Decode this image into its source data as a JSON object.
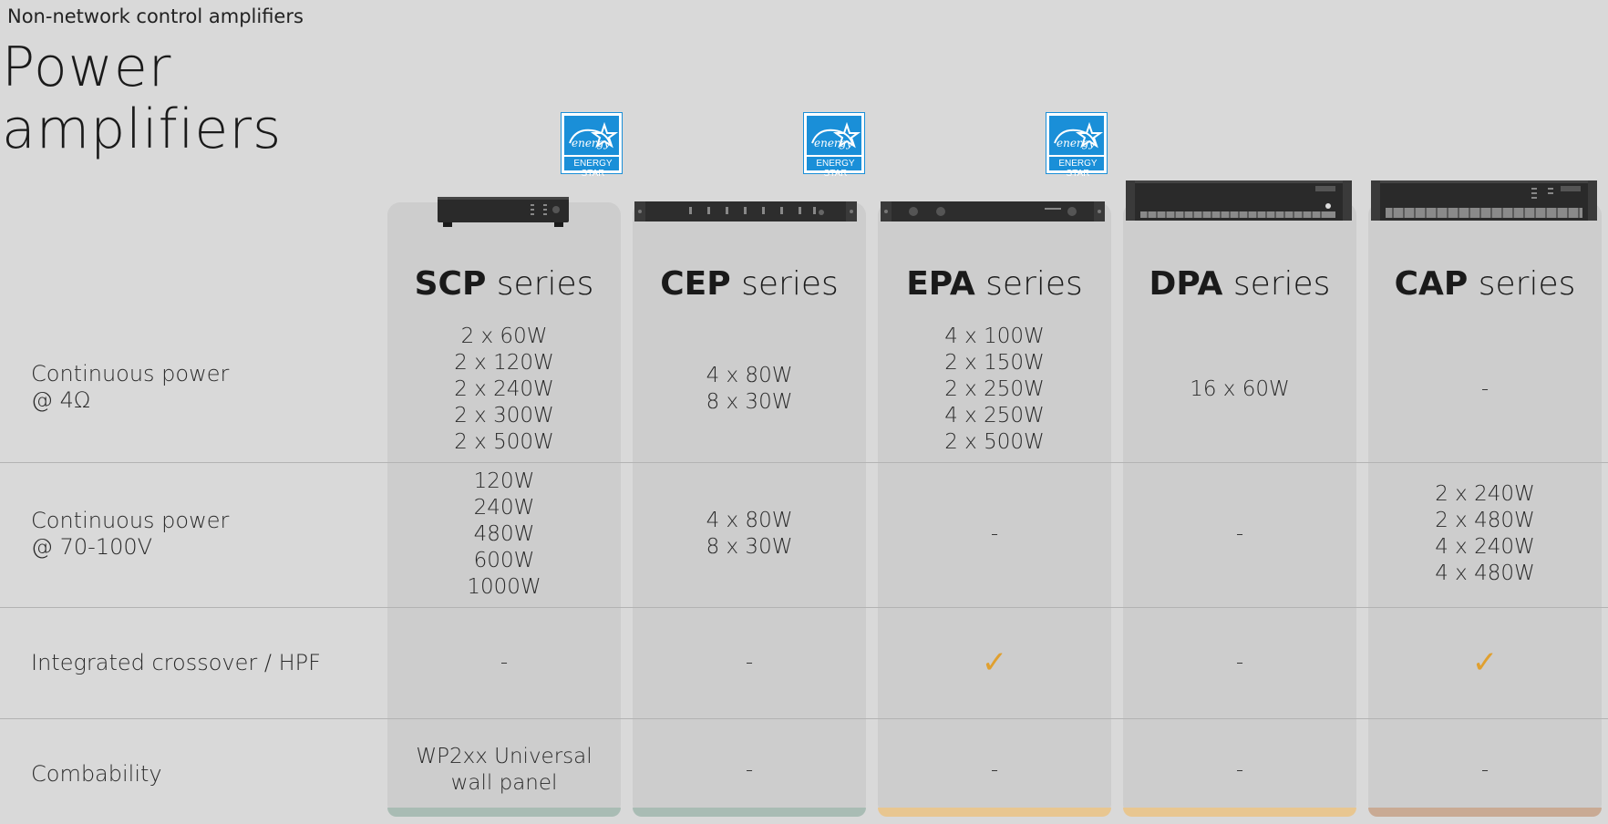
{
  "header": {
    "subtitle": "Non-network control amplifiers",
    "title_line1": "Power",
    "title_line2": "amplifiers"
  },
  "rows": [
    {
      "label_line1": "Continuous power",
      "label_line2": "@ 4Ω"
    },
    {
      "label_line1": "Continuous power",
      "label_line2": "@ 70-100V"
    },
    {
      "label_line1": "Integrated crossover / HPF",
      "label_line2": ""
    },
    {
      "label_line1": "Combability",
      "label_line2": ""
    }
  ],
  "badge": {
    "text": "ENERGY STAR",
    "color": "#1a8fd8"
  },
  "colors": {
    "green_strip": "#a9bcb4",
    "yellow_strip": "#e8c690",
    "brown_strip": "#c9aa94",
    "check": "#e0a030"
  },
  "columns": [
    {
      "name_bold": "SCP",
      "name_light": " series",
      "energy_star": true,
      "power_4ohm": [
        "2 x 60W",
        "2 x 120W",
        "2 x 240W",
        "2 x 300W",
        "2 x 500W"
      ],
      "power_70v": [
        "120W",
        "240W",
        "480W",
        "600W",
        "1000W"
      ],
      "crossover": "-",
      "compat": [
        "WP2xx Universal",
        "wall panel"
      ]
    },
    {
      "name_bold": "CEP",
      "name_light": " series",
      "energy_star": true,
      "power_4ohm": [
        "4 x 80W",
        "8 x 30W"
      ],
      "power_70v": [
        "4 x 80W",
        "8 x 30W"
      ],
      "crossover": "-",
      "compat": [
        "-"
      ]
    },
    {
      "name_bold": "EPA",
      "name_light": " series",
      "energy_star": true,
      "power_4ohm": [
        "4 x 100W",
        "2 x 150W",
        "2 x 250W",
        "4 x 250W",
        "2 x 500W"
      ],
      "power_70v": [
        "-"
      ],
      "crossover": "✓",
      "compat": [
        "-"
      ]
    },
    {
      "name_bold": "DPA",
      "name_light": " series",
      "energy_star": false,
      "power_4ohm": [
        "16 x 60W"
      ],
      "power_70v": [
        "-"
      ],
      "crossover": "-",
      "compat": [
        "-"
      ]
    },
    {
      "name_bold": "CAP",
      "name_light": " series",
      "energy_star": false,
      "power_4ohm": [
        "-"
      ],
      "power_70v": [
        "2 x 240W",
        "2 x 480W",
        "4 x 240W",
        "4 x 480W"
      ],
      "crossover": "✓",
      "compat": [
        "-"
      ]
    }
  ]
}
